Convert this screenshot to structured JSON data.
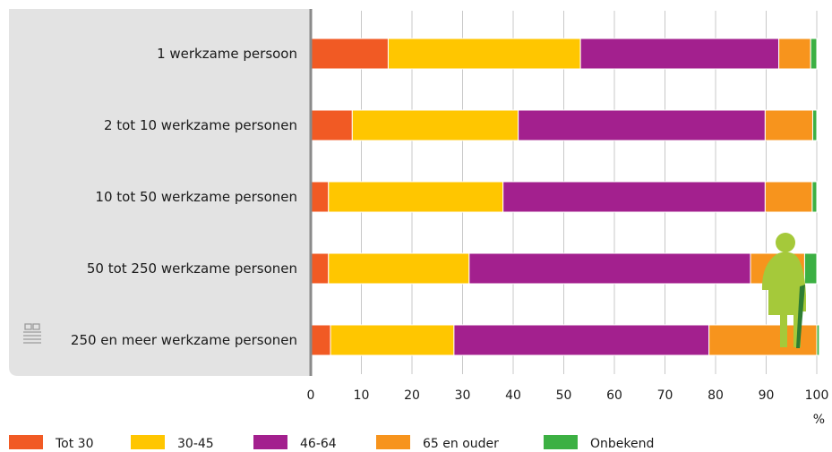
{
  "chart_data": {
    "type": "bar",
    "orientation": "horizontal",
    "stacked": true,
    "categories": [
      "1 werkzame persoon",
      "2 tot 10 werkzame personen",
      "10 tot 50 werkzame personen",
      "50 tot 250 werkzame personen",
      "250 en meer werkzame personen"
    ],
    "series": [
      {
        "name": "Tot 30",
        "color": "#f15a24",
        "values": [
          15.3,
          8.2,
          3.5,
          3.5,
          3.9
        ]
      },
      {
        "name": "30-45",
        "color": "#ffc600",
        "values": [
          38.0,
          32.8,
          34.5,
          27.8,
          24.4
        ]
      },
      {
        "name": "46-64",
        "color": "#a3208e",
        "values": [
          39.2,
          48.8,
          51.8,
          55.6,
          50.4
        ]
      },
      {
        "name": "65 en ouder",
        "color": "#f7941d",
        "values": [
          6.3,
          9.4,
          9.3,
          10.7,
          21.3
        ]
      },
      {
        "name": "Onbekend",
        "color": "#3cb043",
        "values": [
          1.2,
          0.8,
          0.9,
          2.4,
          0.5
        ]
      }
    ],
    "xlim": [
      0,
      100
    ],
    "xticks": [
      "0",
      "10",
      "20",
      "30",
      "40",
      "50",
      "60",
      "70",
      "80",
      "90",
      "100"
    ],
    "xunit": "%",
    "grid": true,
    "legend_position": "bottom"
  }
}
